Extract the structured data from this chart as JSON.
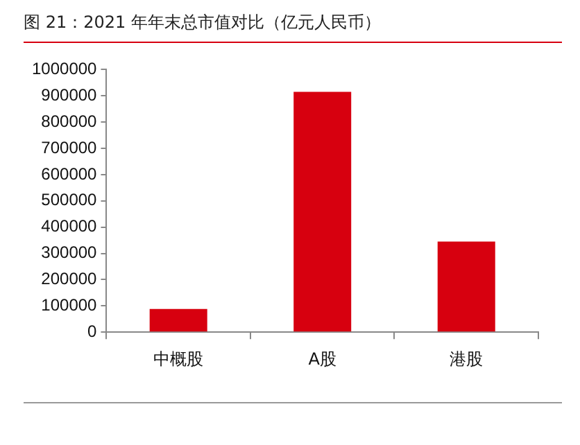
{
  "chart_data": {
    "type": "bar",
    "title": "图 21：2021 年年末总市值对比（亿元人民币）",
    "categories": [
      "中概股",
      "A股",
      "港股"
    ],
    "values": [
      88000,
      915000,
      345000
    ],
    "color": "#d7000f",
    "ylim": [
      0,
      1000000
    ],
    "yticks": [
      0,
      100000,
      200000,
      300000,
      400000,
      500000,
      600000,
      700000,
      800000,
      900000,
      1000000
    ],
    "grid": false,
    "legend": false
  }
}
